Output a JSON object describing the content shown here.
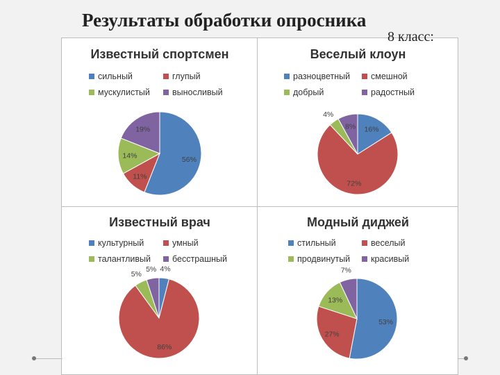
{
  "page": {
    "title": "Результаты обработки опросника",
    "subtitle": "8 класс:"
  },
  "chart_data": [
    {
      "type": "pie",
      "title": "Известный спортсмен",
      "categories": [
        "сильный",
        "глупый",
        "мускулистый",
        "выносливый"
      ],
      "values": [
        56,
        11,
        14,
        19
      ],
      "colors": [
        "#4f81bd",
        "#c0504d",
        "#9bbb59",
        "#8064a2"
      ],
      "data_labels": [
        "56%",
        "11%",
        "14%",
        "19%"
      ]
    },
    {
      "type": "pie",
      "title": "Веселый клоун",
      "categories": [
        "разноцветный",
        "смешной",
        "добрый",
        "радостный"
      ],
      "values": [
        16,
        72,
        4,
        8
      ],
      "colors": [
        "#4f81bd",
        "#c0504d",
        "#9bbb59",
        "#8064a2"
      ],
      "data_labels": [
        "16%",
        "72%",
        "4%",
        "8%"
      ]
    },
    {
      "type": "pie",
      "title": "Известный врач",
      "categories": [
        "культурный",
        "умный",
        "талантливый",
        "бесстрашный"
      ],
      "values": [
        4,
        86,
        5,
        5
      ],
      "colors": [
        "#4f81bd",
        "#c0504d",
        "#9bbb59",
        "#8064a2"
      ],
      "data_labels": [
        "4%",
        "86%",
        "5%",
        "5%"
      ]
    },
    {
      "type": "pie",
      "title": "Модный диджей",
      "categories": [
        "стильный",
        "веселый",
        "продвинутый",
        "красивый"
      ],
      "values": [
        53,
        27,
        13,
        7
      ],
      "colors": [
        "#4f81bd",
        "#c0504d",
        "#9bbb59",
        "#8064a2"
      ],
      "data_labels": [
        "53%",
        "27%",
        "13%",
        "7%"
      ]
    }
  ]
}
